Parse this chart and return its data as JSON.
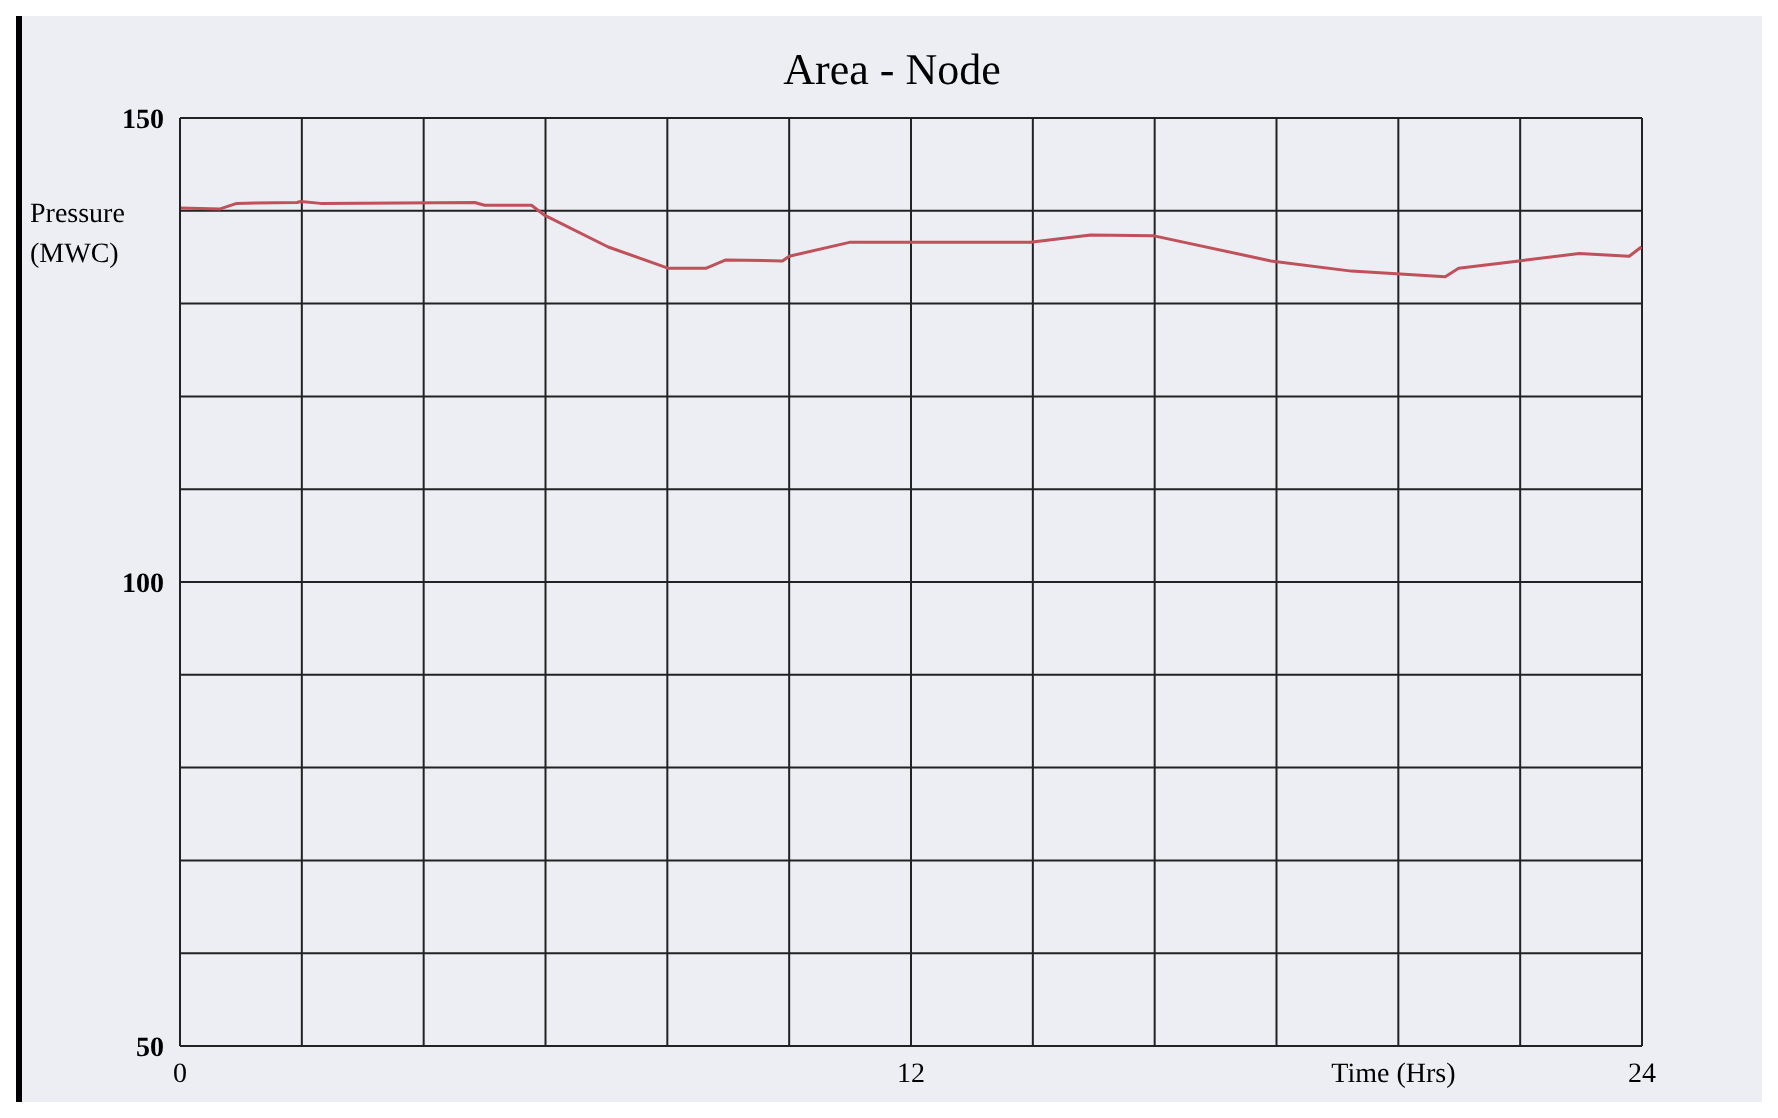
{
  "chart_data": {
    "type": "line",
    "title": "Area - Node",
    "xlabel": "Time (Hrs)",
    "ylabel": "Pressure (MWC)",
    "x": [
      0,
      0.66,
      0.93,
      1.92,
      1.98,
      2.31,
      4.84,
      5.0,
      5.77,
      5.99,
      7.03,
      8.02,
      8.63,
      8.96,
      9.89,
      10.0,
      10.99,
      13.96,
      14.95,
      15.99,
      17.91,
      19.23,
      20.77,
      20.99,
      21.98,
      22.97,
      23.79,
      23.99
    ],
    "series": [
      {
        "color": "#c0505a",
        "values": [
          140.3,
          140.2,
          140.8,
          140.9,
          141.0,
          140.8,
          140.9,
          140.6,
          140.6,
          139.5,
          136.1,
          133.8,
          133.8,
          134.7,
          134.6,
          135.1,
          136.6,
          136.6,
          137.4,
          137.3,
          134.6,
          133.5,
          132.9,
          133.8,
          134.6,
          135.4,
          135.1,
          136.1
        ]
      }
    ],
    "xlim": [
      0,
      24
    ],
    "ylim": [
      50,
      150
    ],
    "xticks": [
      0,
      {
        "value": 2,
        "label": null
      },
      {
        "value": 4,
        "label": null
      },
      {
        "value": 6,
        "label": null
      },
      {
        "value": 8,
        "label": null
      },
      {
        "value": 10,
        "label": null
      },
      12,
      {
        "value": 14,
        "label": null
      },
      {
        "value": 16,
        "label": null
      },
      {
        "value": 18,
        "label": null
      },
      {
        "value": 20,
        "label": null
      },
      {
        "value": 22,
        "label": null
      },
      24
    ],
    "yticks": [
      50,
      {
        "value": 60,
        "label": null
      },
      {
        "value": 70,
        "label": null
      },
      {
        "value": 80,
        "label": null
      },
      {
        "value": 90,
        "label": null
      },
      100,
      {
        "value": 110,
        "label": null
      },
      {
        "value": 120,
        "label": null
      },
      {
        "value": 130,
        "label": null
      },
      {
        "value": 140,
        "label": null
      },
      150
    ],
    "grid": true,
    "legend": false,
    "marker": "none",
    "line_style": "solid"
  }
}
